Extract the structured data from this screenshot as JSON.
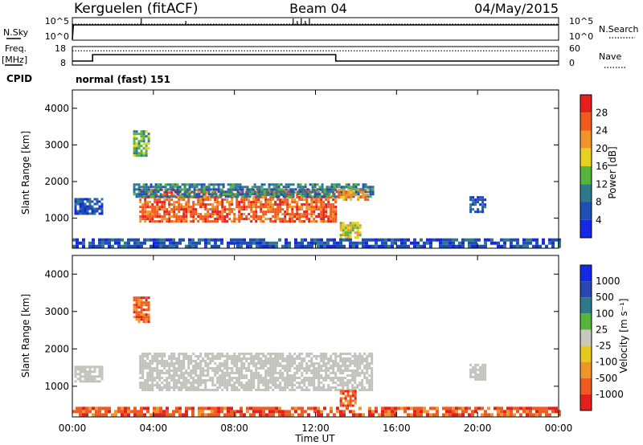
{
  "header": {
    "station": "Kerguelen (fitACF)",
    "beam": "Beam 04",
    "date": "04/May/2015"
  },
  "noise_panel": {
    "left_label": "N.Sky",
    "right_label": "N.Search",
    "yticks_left": [
      "10^5",
      "10^0"
    ],
    "yticks_right": [
      "10^5",
      "10^0"
    ]
  },
  "freq_panel": {
    "left_label_1": "Freq.",
    "left_label_2": "[MHz]",
    "right_label": "Nave",
    "yticks_left": [
      "18",
      "8"
    ],
    "yticks_right": [
      "60",
      "0"
    ]
  },
  "cpid": {
    "label": "CPID",
    "value": "normal (fast) 151"
  },
  "x_axis": {
    "label": "Time UT",
    "ticks": [
      "00:00",
      "04:00",
      "08:00",
      "12:00",
      "16:00",
      "20:00",
      "00:00"
    ]
  },
  "colors": {
    "power_scale": [
      "#1428e6",
      "#1e50b4",
      "#2e7a8c",
      "#55b43c",
      "#e6d21e",
      "#f09628",
      "#f05a1e",
      "#e61e1e"
    ],
    "velocity_scale": [
      "#1428e6",
      "#2846b4",
      "#2e7a8c",
      "#55b43c",
      "#c8c8c0",
      "#e6c81e",
      "#f09628",
      "#f05a1e",
      "#e61e1e"
    ],
    "ground_scatter": "#c3c3bd"
  },
  "chart_data": [
    {
      "type": "line",
      "name": "noise",
      "x_range_hours": [
        0,
        24
      ],
      "series": [
        {
          "name": "N.Sky",
          "style": "solid",
          "x": [
            0,
            0.05,
            24
          ],
          "y": [
            "10^0",
            "10^5",
            "10^5"
          ]
        },
        {
          "name": "N.Search",
          "style": "dotted",
          "x": [
            0,
            24
          ],
          "y": [
            "10^5",
            "10^5"
          ]
        }
      ],
      "spikes_hours": [
        3.4,
        5.6,
        10.9,
        11.1,
        11.3,
        11.5,
        11.7
      ]
    },
    {
      "type": "line",
      "name": "frequency",
      "ylim_left": [
        8,
        18
      ],
      "ylim_right": [
        0,
        60
      ],
      "series": [
        {
          "name": "Freq.",
          "unit": "MHz",
          "style": "solid",
          "x": [
            0,
            1,
            1,
            13,
            13,
            24
          ],
          "y": [
            10,
            10,
            14,
            14,
            10,
            10
          ]
        },
        {
          "name": "Nave",
          "style": "dotted",
          "x": [
            0,
            24
          ],
          "y": [
            50,
            50
          ]
        }
      ]
    },
    {
      "type": "heatmap",
      "name": "power",
      "xlabel": "Time UT",
      "ylabel": "Slant Range [km]",
      "ylim": [
        180,
        4500
      ],
      "yticks": [
        1000,
        2000,
        3000,
        4000
      ],
      "colorbar": {
        "label": "Power [dB]",
        "ticks": [
          4,
          8,
          12,
          16,
          20,
          24,
          28
        ],
        "range": [
          0,
          32
        ]
      },
      "regions": [
        {
          "t0": 3.3,
          "t1": 13.0,
          "r0": 900,
          "r1": 1800,
          "value": 28
        },
        {
          "t0": 3.0,
          "t1": 14.8,
          "r0": 1600,
          "r1": 1950,
          "value": 12
        },
        {
          "t0": 0.1,
          "t1": 1.5,
          "r0": 1100,
          "r1": 1550,
          "value": 8
        },
        {
          "t0": 13.1,
          "t1": 14.6,
          "r0": 1500,
          "r1": 1800,
          "value": 24
        },
        {
          "t0": 13.2,
          "t1": 14.2,
          "r0": 500,
          "r1": 900,
          "value": 20
        },
        {
          "t0": 3.0,
          "t1": 3.8,
          "r0": 2700,
          "r1": 3400,
          "value": 16
        },
        {
          "t0": 19.6,
          "t1": 20.4,
          "r0": 1200,
          "r1": 1600,
          "value": 8
        },
        {
          "t0": 0.0,
          "t1": 24.0,
          "r0": 200,
          "r1": 450,
          "value": 6
        }
      ]
    },
    {
      "type": "heatmap",
      "name": "velocity",
      "xlabel": "Time UT",
      "ylabel": "Slant Range [km]",
      "ylim": [
        180,
        4500
      ],
      "yticks": [
        1000,
        2000,
        3000,
        4000
      ],
      "colorbar": {
        "label": "Velocity [m s⁻¹]",
        "ticks": [
          1000,
          500,
          100,
          25,
          -25,
          -100,
          -500,
          -1000
        ]
      },
      "regions": [
        {
          "t0": 3.3,
          "t1": 14.8,
          "r0": 900,
          "r1": 1900,
          "value": 0
        },
        {
          "t0": 0.1,
          "t1": 1.5,
          "r0": 1100,
          "r1": 1550,
          "value": 0
        },
        {
          "t0": 19.6,
          "t1": 20.4,
          "r0": 1200,
          "r1": 1600,
          "value": 0
        },
        {
          "t0": 13.2,
          "t1": 14.0,
          "r0": 500,
          "r1": 900,
          "value": -500
        },
        {
          "t0": 3.0,
          "t1": 3.8,
          "r0": 2700,
          "r1": 3400,
          "value": -100
        },
        {
          "t0": 0.0,
          "t1": 24.0,
          "r0": 200,
          "r1": 450,
          "value": -100
        }
      ]
    }
  ]
}
